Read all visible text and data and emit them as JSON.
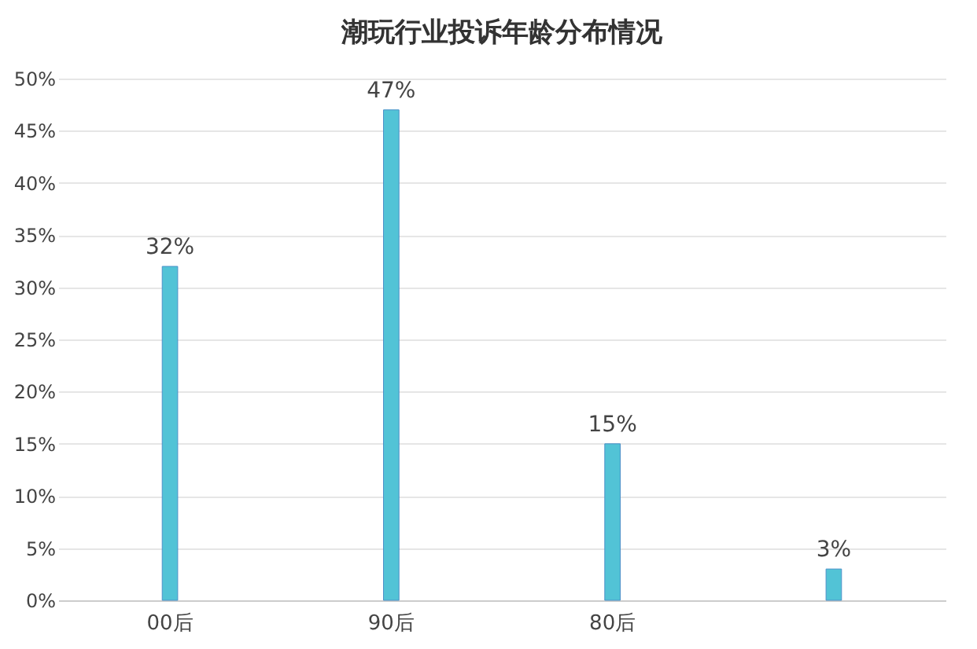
{
  "chart_data": {
    "type": "bar",
    "title": "潮玩行业投诉年龄分布情况",
    "categories": [
      "00后",
      "90后",
      "80后",
      null
    ],
    "values": [
      32,
      47,
      15,
      3
    ],
    "value_labels": [
      "32%",
      "47%",
      "15%",
      "3%"
    ],
    "color": "#52c3d6",
    "ylim": [
      0,
      50
    ],
    "yticks": [
      {
        "value": 0,
        "label": "0%"
      },
      {
        "value": 5,
        "label": "5%"
      },
      {
        "value": 10,
        "label": "10%"
      },
      {
        "value": 15,
        "label": "15%"
      },
      {
        "value": 20,
        "label": "20%"
      },
      {
        "value": 25,
        "label": "25%"
      },
      {
        "value": 30,
        "label": "30%"
      },
      {
        "value": 35,
        "label": "35%"
      },
      {
        "value": 40,
        "label": "40%"
      },
      {
        "value": 45,
        "label": "45%"
      },
      {
        "value": 50,
        "label": "50%"
      }
    ],
    "grid": "y"
  }
}
